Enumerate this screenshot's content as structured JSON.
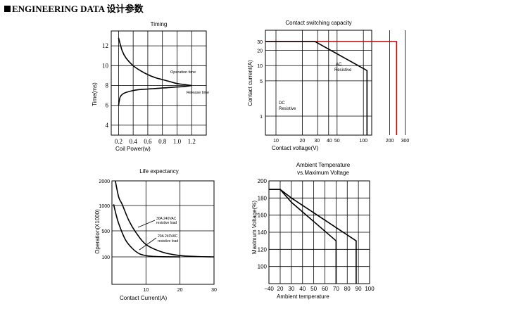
{
  "header": {
    "title": "ENGINEERING DATA 设计参数"
  },
  "chart_data": [
    {
      "id": "timing",
      "type": "line",
      "title": "Timing",
      "xlabel": "Coil Power(w)",
      "ylabel": "Time(ms)",
      "xlim": [
        0.1,
        1.4
      ],
      "ylim": [
        3,
        13.5
      ],
      "xticks": [
        0.2,
        0.4,
        0.6,
        0.8,
        1.0,
        1.2
      ],
      "xtick_labels": [
        "0.2",
        "0.4",
        "0.6",
        "0.8",
        "1.0",
        "1.2"
      ],
      "yticks": [
        4,
        6,
        8,
        10,
        12
      ],
      "ytick_labels": [
        "4",
        "6",
        "8",
        "10",
        "12"
      ],
      "grid": true,
      "series": [
        {
          "name": "Operation time",
          "x": [
            0.2,
            0.25,
            0.3,
            0.4,
            0.5,
            0.6,
            0.7,
            0.8,
            0.9,
            1.0,
            1.1,
            1.2
          ],
          "y": [
            12.8,
            11.5,
            10.8,
            10.0,
            9.5,
            9.1,
            8.8,
            8.6,
            8.4,
            8.2,
            8.1,
            8.0
          ]
        },
        {
          "name": "Release time",
          "x": [
            0.2,
            0.22,
            0.25,
            0.3,
            0.4,
            0.5,
            0.6,
            0.7,
            0.8,
            0.9,
            1.0,
            1.1,
            1.2
          ],
          "y": [
            6.0,
            6.8,
            7.1,
            7.3,
            7.5,
            7.6,
            7.65,
            7.7,
            7.75,
            7.8,
            7.85,
            7.9,
            8.0
          ]
        }
      ],
      "annotations": [
        "Operation time",
        "Release time"
      ]
    },
    {
      "id": "contact-capacity",
      "type": "line",
      "title": "Contact switching capacity",
      "xlabel": "Contact voltage(V)",
      "ylabel": "Contact current(A)",
      "xscale": "log",
      "yscale": "log",
      "xticks": [
        10,
        20,
        30,
        40,
        50,
        100,
        200,
        300
      ],
      "xtick_labels": [
        "10",
        "20",
        "30",
        "40",
        "50",
        "100",
        "200",
        "300"
      ],
      "yticks": [
        1,
        5,
        10,
        20,
        30
      ],
      "ytick_labels": [
        "1",
        "5",
        "10",
        "20",
        "30"
      ],
      "grid": true,
      "series": [
        {
          "name": "AC Resistive",
          "color": "#c00000",
          "x": [
            7.5,
            240,
            240
          ],
          "y": [
            30,
            30,
            0.3
          ]
        },
        {
          "name": "DC Resistive",
          "color": "#000000",
          "x": [
            7.5,
            28,
            110,
            110
          ],
          "y": [
            30,
            30,
            8,
            0.3
          ]
        }
      ],
      "annotations": [
        "AC",
        "Resistive",
        "DC",
        "Resistive"
      ]
    },
    {
      "id": "life-expectancy",
      "type": "line",
      "title": "Life expectancy",
      "xlabel": "Contact Current(A)",
      "ylabel": "Operation(X1000)",
      "xlim": [
        0,
        30
      ],
      "xticks": [
        10,
        20,
        30
      ],
      "xtick_labels": [
        "10",
        "20",
        "30"
      ],
      "yticks": [
        100,
        500,
        1000,
        2000
      ],
      "ytick_labels": [
        "100",
        "500",
        "1000",
        "2000"
      ],
      "grid": true,
      "series": [
        {
          "name": "30A 240VAC resistive load",
          "x": [
            1,
            2,
            3,
            5,
            7,
            10,
            15,
            20,
            25,
            30
          ],
          "y": [
            2000,
            1330,
            1050,
            700,
            480,
            290,
            170,
            120,
            105,
            100
          ]
        },
        {
          "name": "20A 240VAC resistive load",
          "x": [
            0.5,
            1,
            2,
            4,
            6,
            8,
            10,
            12,
            15,
            20
          ],
          "y": [
            1050,
            880,
            640,
            360,
            230,
            150,
            120,
            108,
            102,
            100
          ]
        }
      ],
      "annotations": [
        "30A 240VAC",
        "resistive load",
        "20A 240VAC",
        "resistive load"
      ]
    },
    {
      "id": "ambient-temperature",
      "type": "line",
      "title": "Ambient Temperature",
      "subtitle": "vs.Maximum Voltage",
      "xlabel": "Ambient temperature",
      "ylabel": "Maximum Voltage(%)",
      "xlim": [
        -40,
        100
      ],
      "ylim": [
        80,
        200
      ],
      "xticks": [
        -40,
        20,
        30,
        40,
        50,
        60,
        70,
        80,
        90,
        100
      ],
      "xtick_labels": [
        "−40",
        "20",
        "30",
        "40",
        "50",
        "60",
        "70",
        "80",
        "90",
        "100"
      ],
      "yticks": [
        100,
        120,
        140,
        160,
        180,
        200
      ],
      "ytick_labels": [
        "100",
        "120",
        "140",
        "160",
        "180",
        "200"
      ],
      "grid": true,
      "series": [
        {
          "x": [
            -40,
            20,
            30,
            70,
            70
          ],
          "y": [
            190,
            190,
            175,
            130,
            80
          ]
        },
        {
          "x": [
            -40,
            20,
            30,
            88,
            88
          ],
          "y": [
            190,
            190,
            180,
            130,
            80
          ]
        }
      ]
    }
  ]
}
